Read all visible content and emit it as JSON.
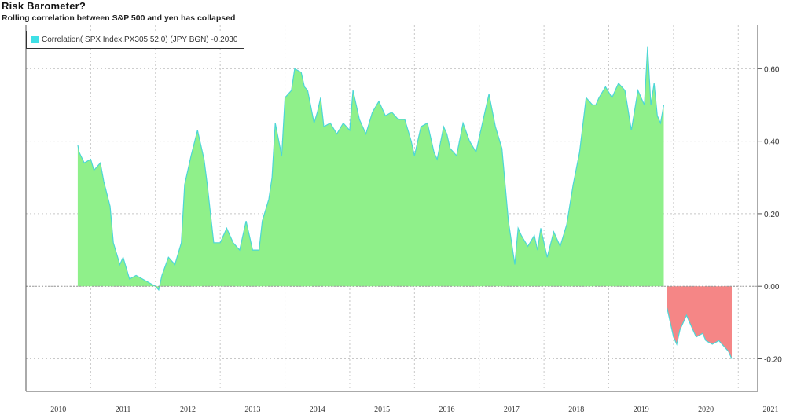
{
  "title": "Risk Barometer?",
  "subtitle": "Rolling correlation between S&P 500 and yen has collapsed",
  "legend": {
    "label": "Correlation( SPX Index,PX305,52,0) (JPY BGN) -0.2030",
    "swatch_color": "#3fe0e6"
  },
  "colors": {
    "positive_fill": "#8ff08a",
    "negative_fill": "#f58686",
    "line": "#4cd6d6",
    "grid": "#c8c8c8"
  },
  "chart_data": {
    "type": "area",
    "title": "Risk Barometer?",
    "subtitle": "Rolling correlation between S&P 500 and yen has collapsed",
    "xlabel": "",
    "ylabel": "",
    "xlim": [
      2010.0,
      2021.3
    ],
    "ylim": [
      -0.29,
      0.72
    ],
    "x_ticks": [
      2010,
      2011,
      2012,
      2013,
      2014,
      2015,
      2016,
      2017,
      2018,
      2019,
      2020,
      2021
    ],
    "x_tick_labels": [
      "2010",
      "2011",
      "2012",
      "2013",
      "2014",
      "2015",
      "2016",
      "2017",
      "2018",
      "2019",
      "2020",
      "2021"
    ],
    "y_ticks": [
      -0.2,
      0.0,
      0.2,
      0.4,
      0.6
    ],
    "y_tick_labels": [
      "-0.20",
      "0.00",
      "0.20",
      "0.40",
      "0.60"
    ],
    "grid": true,
    "legend_position": "top-left",
    "series": [
      {
        "name": "Correlation( SPX Index,PX305,52,0) (JPY BGN) -0.2030",
        "x": [
          2010.8,
          2010.82,
          2010.9,
          2011.0,
          2011.05,
          2011.15,
          2011.2,
          2011.3,
          2011.35,
          2011.45,
          2011.5,
          2011.6,
          2011.7,
          2011.8,
          2011.9,
          2012.0,
          2012.05,
          2012.1,
          2012.2,
          2012.3,
          2012.4,
          2012.45,
          2012.55,
          2012.65,
          2012.75,
          2012.8,
          2012.9,
          2013.0,
          2013.1,
          2013.2,
          2013.3,
          2013.4,
          2013.5,
          2013.6,
          2013.65,
          2013.75,
          2013.8,
          2013.85,
          2013.95,
          2014.0,
          2014.1,
          2014.15,
          2014.25,
          2014.3,
          2014.35,
          2014.45,
          2014.5,
          2014.55,
          2014.6,
          2014.7,
          2014.8,
          2014.9,
          2015.0,
          2015.05,
          2015.15,
          2015.25,
          2015.35,
          2015.45,
          2015.55,
          2015.65,
          2015.75,
          2015.85,
          2015.95,
          2016.0,
          2016.1,
          2016.2,
          2016.3,
          2016.35,
          2016.45,
          2016.5,
          2016.55,
          2016.65,
          2016.75,
          2016.85,
          2016.95,
          2017.05,
          2017.15,
          2017.25,
          2017.35,
          2017.45,
          2017.55,
          2017.6,
          2017.65,
          2017.75,
          2017.85,
          2017.9,
          2017.95,
          2018.05,
          2018.15,
          2018.25,
          2018.35,
          2018.45,
          2018.55,
          2018.65,
          2018.75,
          2018.8,
          2018.85,
          2018.95,
          2019.05,
          2019.15,
          2019.25,
          2019.35,
          2019.45,
          2019.55,
          2019.6,
          2019.65,
          2019.7,
          2019.75,
          2019.8,
          2019.85
        ],
        "y": [
          0.39,
          0.37,
          0.34,
          0.35,
          0.32,
          0.34,
          0.29,
          0.22,
          0.12,
          0.06,
          0.08,
          0.02,
          0.03,
          0.02,
          0.01,
          0.0,
          -0.01,
          0.03,
          0.08,
          0.06,
          0.12,
          0.28,
          0.36,
          0.43,
          0.35,
          0.28,
          0.12,
          0.12,
          0.16,
          0.12,
          0.1,
          0.18,
          0.1,
          0.1,
          0.18,
          0.24,
          0.3,
          0.45,
          0.36,
          0.52,
          0.54,
          0.6,
          0.59,
          0.55,
          0.54,
          0.45,
          0.48,
          0.52,
          0.44,
          0.45,
          0.42,
          0.45,
          0.43,
          0.54,
          0.46,
          0.42,
          0.48,
          0.51,
          0.47,
          0.48,
          0.46,
          0.46,
          0.4,
          0.36,
          0.44,
          0.45,
          0.37,
          0.35,
          0.44,
          0.42,
          0.38,
          0.36,
          0.45,
          0.4,
          0.37,
          0.45,
          0.53,
          0.44,
          0.38,
          0.18,
          0.06,
          0.16,
          0.14,
          0.11,
          0.14,
          0.1,
          0.16,
          0.08,
          0.15,
          0.11,
          0.17,
          0.28,
          0.37,
          0.52,
          0.5,
          0.5,
          0.52,
          0.55,
          0.52,
          0.56,
          0.54,
          0.43,
          0.54,
          0.5,
          0.66,
          0.5,
          0.56,
          0.47,
          0.45,
          0.5
        ]
      },
      {
        "name": "",
        "x": [
          2019.9,
          2019.95,
          2020.0,
          2020.05,
          2020.1,
          2020.2,
          2020.3,
          2020.35,
          2020.45,
          2020.5,
          2020.6,
          2020.7,
          2020.8,
          2020.85,
          2020.9
        ],
        "y": [
          -0.06,
          -0.1,
          -0.14,
          -0.16,
          -0.12,
          -0.08,
          -0.12,
          -0.14,
          -0.13,
          -0.15,
          -0.16,
          -0.15,
          -0.17,
          -0.18,
          -0.2
        ]
      }
    ]
  }
}
